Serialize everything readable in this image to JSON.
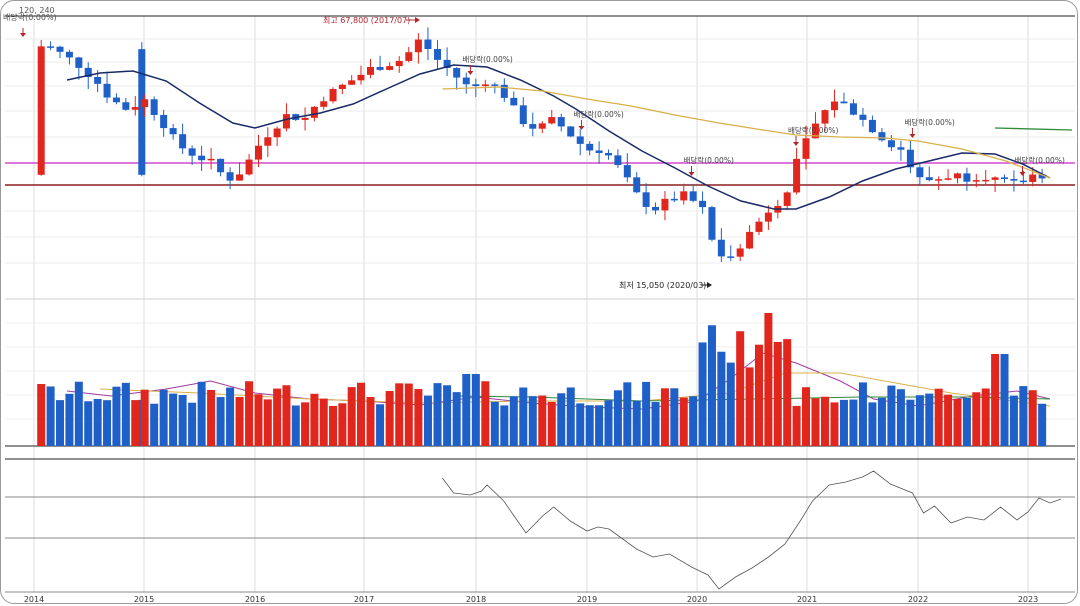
{
  "chart_data": {
    "type": "candlestick",
    "period": "weekly",
    "colors": {
      "up": "#e0261d",
      "down": "#1f5fc8",
      "ma_short": "#1a2a66",
      "ma_long": "#d8b04a",
      "ma_green": "#2e8b3a",
      "ref_purple": "#d04ad0",
      "ref_red": "#8b1f1f",
      "osc_line": "#555555"
    },
    "price": {
      "annotations": {
        "high": "최고 67,800 (2017/07)",
        "low": "최저 15,050 (2020/03)",
        "top_left_value": "120, 240",
        "top_left_div": "배당락(0.00%)"
      },
      "high_value": 67800,
      "low_value": 15050,
      "dividend_marks": [
        {
          "year": 2017.95,
          "label": "배당락(0.00%)"
        },
        {
          "year": 2018.95,
          "label": "배당락(0.00%)"
        },
        {
          "year": 2019.95,
          "label": "배당락(0.00%)"
        },
        {
          "year": 2020.9,
          "label": "배당락(0.00%)"
        },
        {
          "year": 2021.95,
          "label": "배당락(0.00%)"
        },
        {
          "year": 2022.95,
          "label": "배당락(0.00%)"
        }
      ]
    },
    "x_axis_years": [
      "2014",
      "2015",
      "2016",
      "2017",
      "2018",
      "2019",
      "2020",
      "2021",
      "2022",
      "2023"
    ]
  }
}
